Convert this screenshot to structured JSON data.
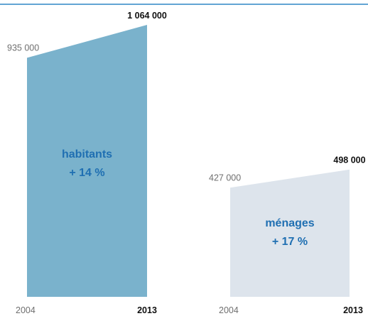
{
  "chart_data": [
    {
      "type": "area",
      "name": "habitants",
      "x": [
        "2004",
        "2013"
      ],
      "values": [
        935000,
        1064000
      ],
      "value_labels": [
        "935 000",
        "1 064 000"
      ],
      "label": "habitants",
      "change": "+ 14 %",
      "fill_color": "#7ab2cc",
      "text_color": "#1f6fb2"
    },
    {
      "type": "area",
      "name": "ménages",
      "x": [
        "2004",
        "2013"
      ],
      "values": [
        427000,
        498000
      ],
      "value_labels": [
        "427 000",
        "498 000"
      ],
      "label": "ménages",
      "change": "+ 17 %",
      "fill_color": "#dde4ec",
      "text_color": "#1f6fb2"
    }
  ],
  "colors": {
    "rule": "#2f86c6",
    "start_value_text": "#6f6f6f",
    "end_value_text": "#111111"
  }
}
